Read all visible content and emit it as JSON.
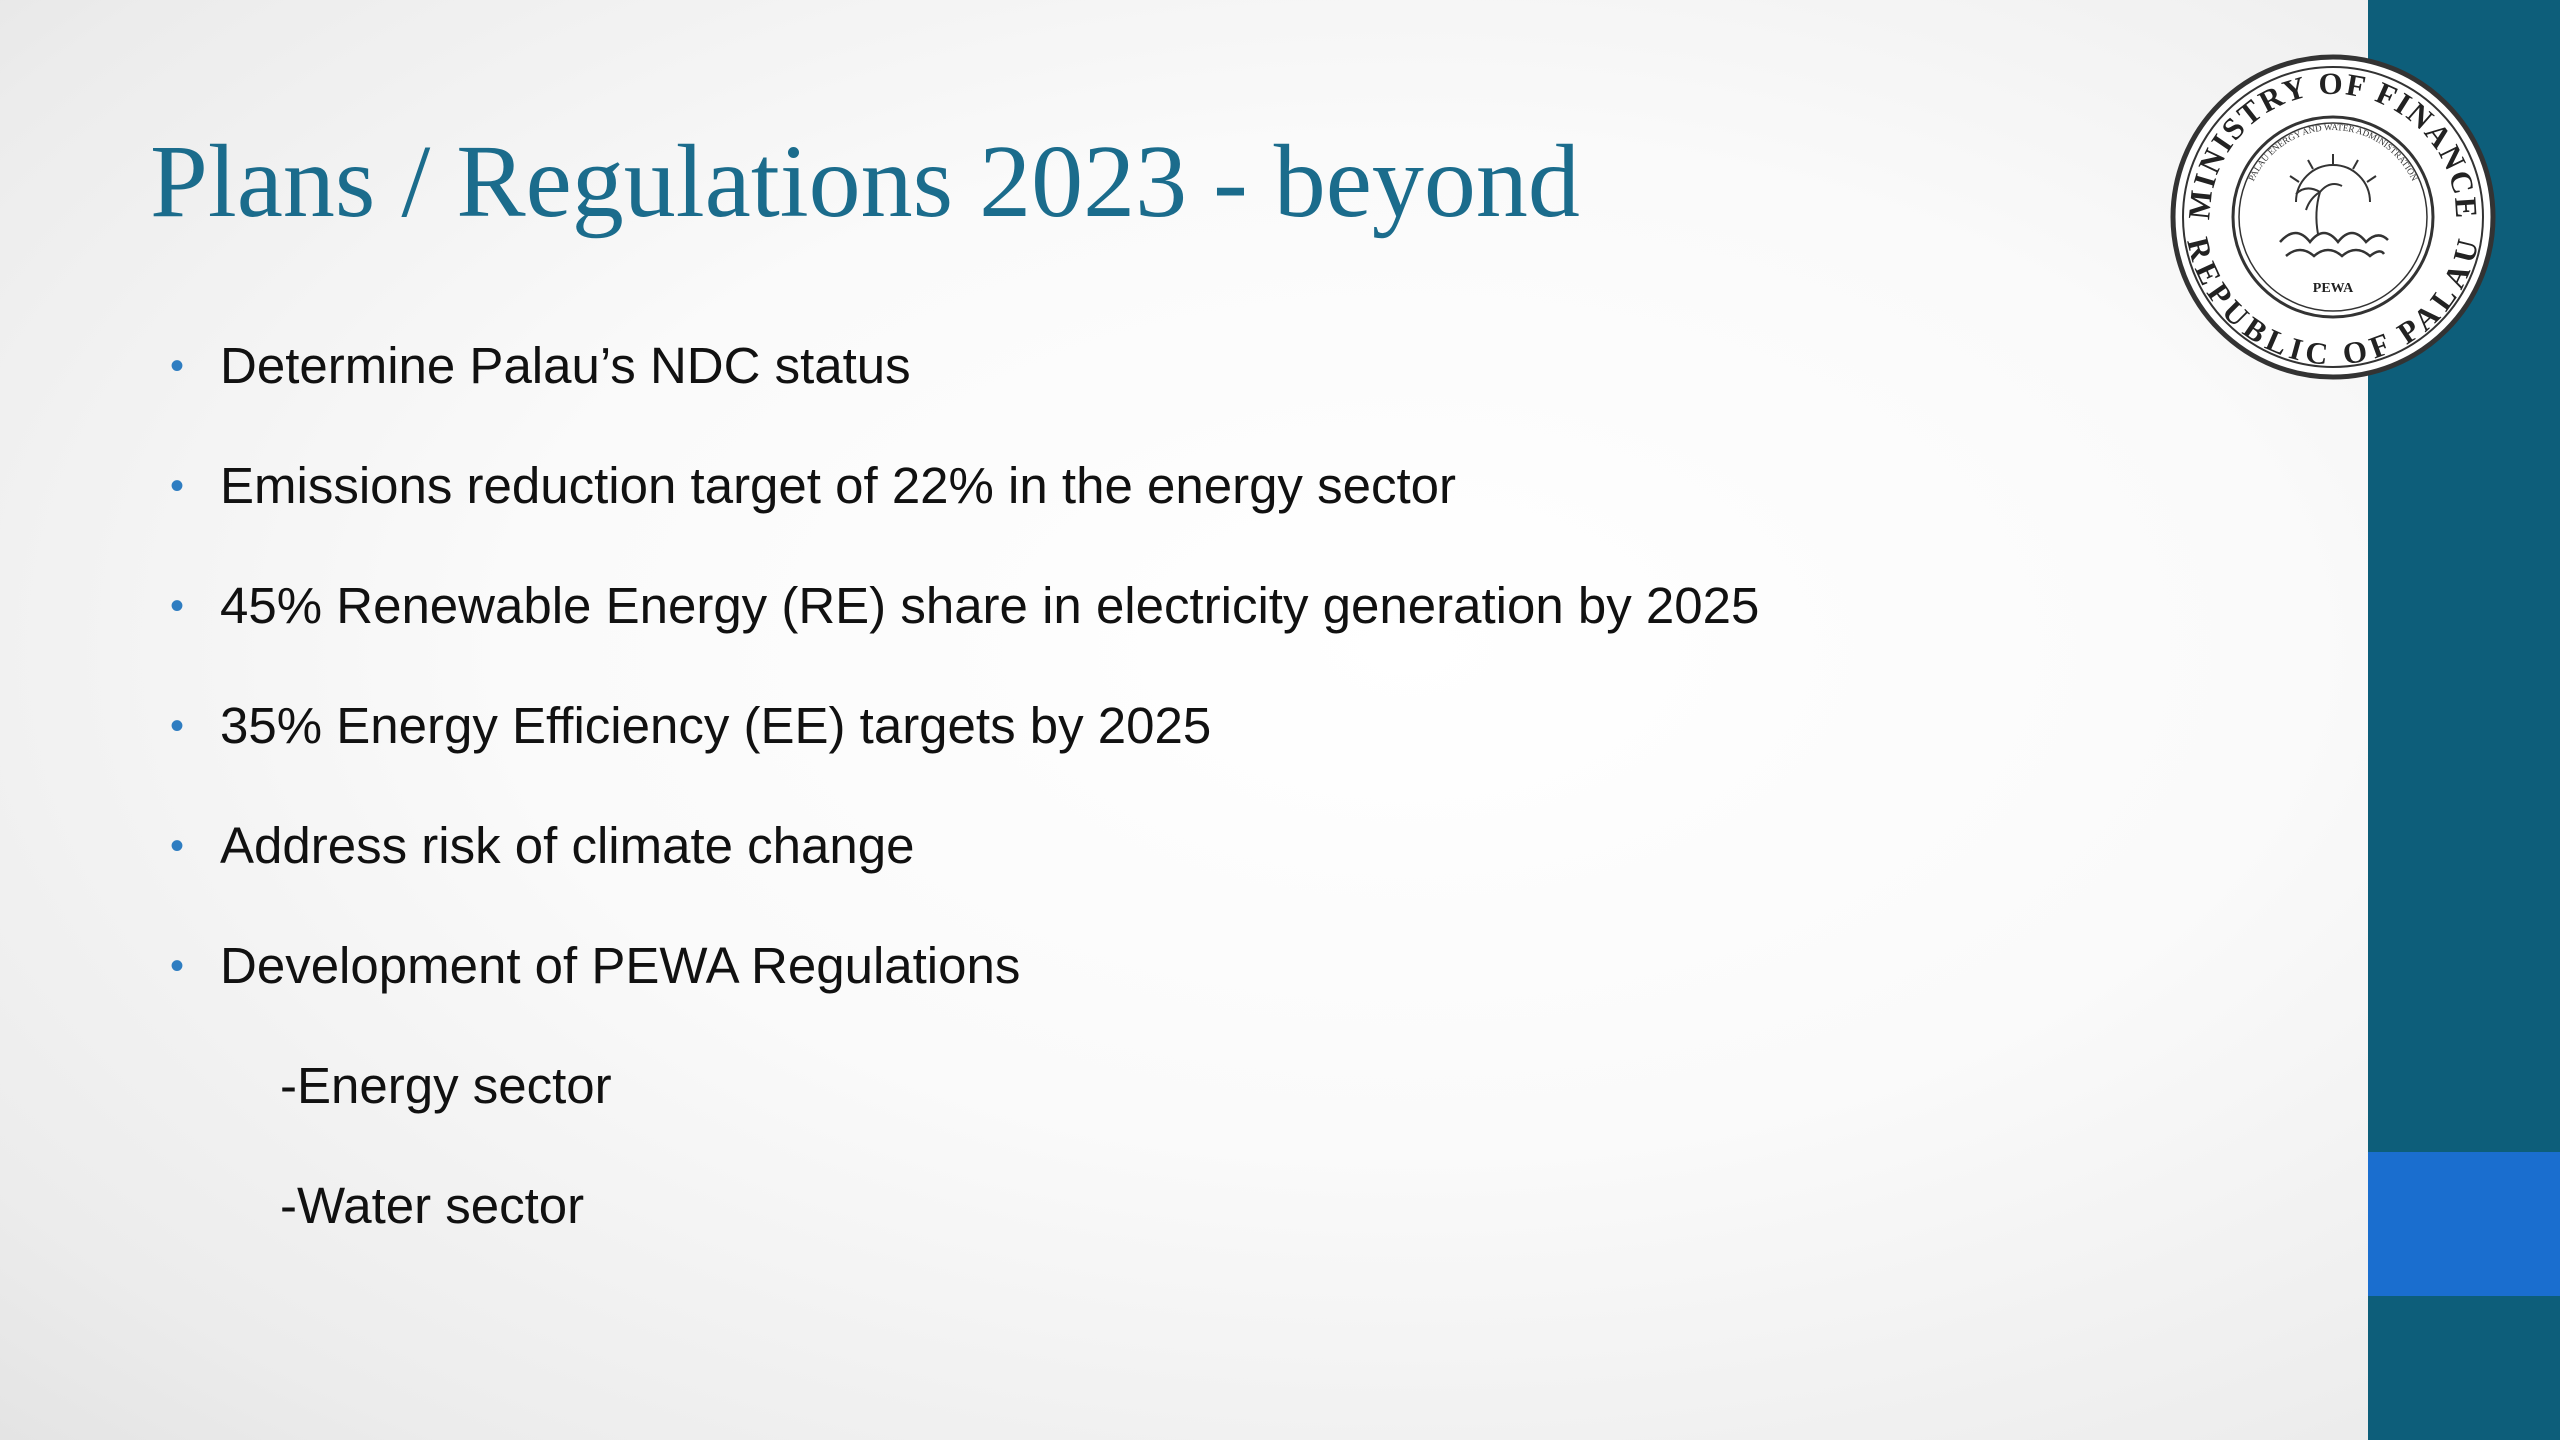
{
  "slide": {
    "title": "Plans / Regulations 2023 - beyond",
    "bullets": [
      {
        "text": "Determine Palau’s NDC status",
        "marker": "•"
      },
      {
        "text": "Emissions reduction target of 22% in the energy sector",
        "marker": "•"
      },
      {
        "text": "45% Renewable Energy (RE) share in electricity generation by 2025",
        "marker": "•"
      },
      {
        "text": "35% Energy Efficiency (EE) targets by 2025",
        "marker": "•"
      },
      {
        "text": "Address risk of climate change",
        "marker": "•"
      },
      {
        "text": "Development of PEWA Regulations",
        "marker": "•"
      },
      {
        "text": "-Energy sector",
        "marker": ""
      },
      {
        "text": "-Water sector",
        "marker": ""
      }
    ]
  },
  "seal": {
    "outer_text_top": "MINISTRY OF FINANCE",
    "outer_text_bottom": "REPUBLIC OF PALAU",
    "inner_text": "PALAU ENERGY AND WATER ADMINISTRATION",
    "center_text": "PEWA"
  },
  "colors": {
    "title": "#1b6c8c",
    "bullet_marker": "#2e7dc1",
    "right_band": "#0d5e7a",
    "right_accent": "#1a6ecf"
  }
}
